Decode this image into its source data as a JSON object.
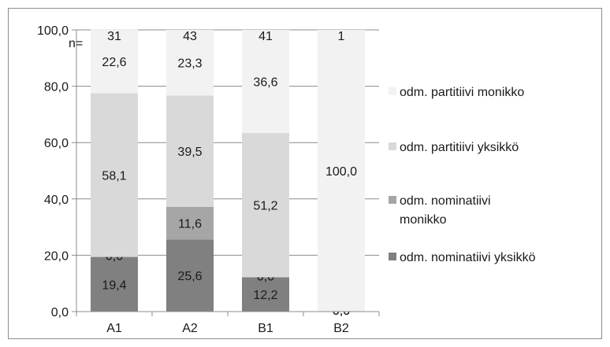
{
  "chart_data": {
    "type": "bar",
    "stacked": true,
    "categories": [
      "A1",
      "A2",
      "B1",
      "B2"
    ],
    "n_label": "n=",
    "n_values": [
      "31",
      "43",
      "41",
      "1"
    ],
    "ylim": [
      0,
      100
    ],
    "yticks": [
      "0,0",
      "20,0",
      "40,0",
      "60,0",
      "80,0",
      "100,0"
    ],
    "grid": true,
    "legend_position": "right",
    "series": [
      {
        "name": "odm. nominatiivi yksikkö",
        "color": "#808080",
        "values": [
          19.4,
          25.6,
          12.2,
          0.0
        ],
        "labels": [
          "19,4",
          "25,6",
          "12,2",
          "0,0"
        ]
      },
      {
        "name": "odm. nominatiivi monikko",
        "color": "#a6a6a6",
        "values": [
          0.0,
          11.6,
          0.0,
          0.0
        ],
        "labels": [
          "0,0",
          "11,6",
          "0,0",
          "0,0"
        ]
      },
      {
        "name": "odm. partitiivi yksikkö",
        "color": "#d9d9d9",
        "values": [
          58.1,
          39.5,
          51.2,
          0.0
        ],
        "labels": [
          "58,1",
          "39,5",
          "51,2",
          ""
        ]
      },
      {
        "name": "odm. partitiivi monikko",
        "color": "#f2f2f2",
        "values": [
          22.6,
          23.3,
          36.6,
          100.0
        ],
        "labels": [
          "22,6",
          "23,3",
          "36,6",
          "100,0"
        ]
      }
    ],
    "legend": [
      {
        "label": "odm. partitiivi monikko",
        "color": "#f2f2f2"
      },
      {
        "label": "odm. partitiivi yksikkö",
        "color": "#d9d9d9"
      },
      {
        "label_lines": [
          "odm. nominatiivi",
          "monikko"
        ],
        "color": "#a6a6a6"
      },
      {
        "label": "odm. nominatiivi yksikkö",
        "color": "#808080"
      }
    ]
  }
}
